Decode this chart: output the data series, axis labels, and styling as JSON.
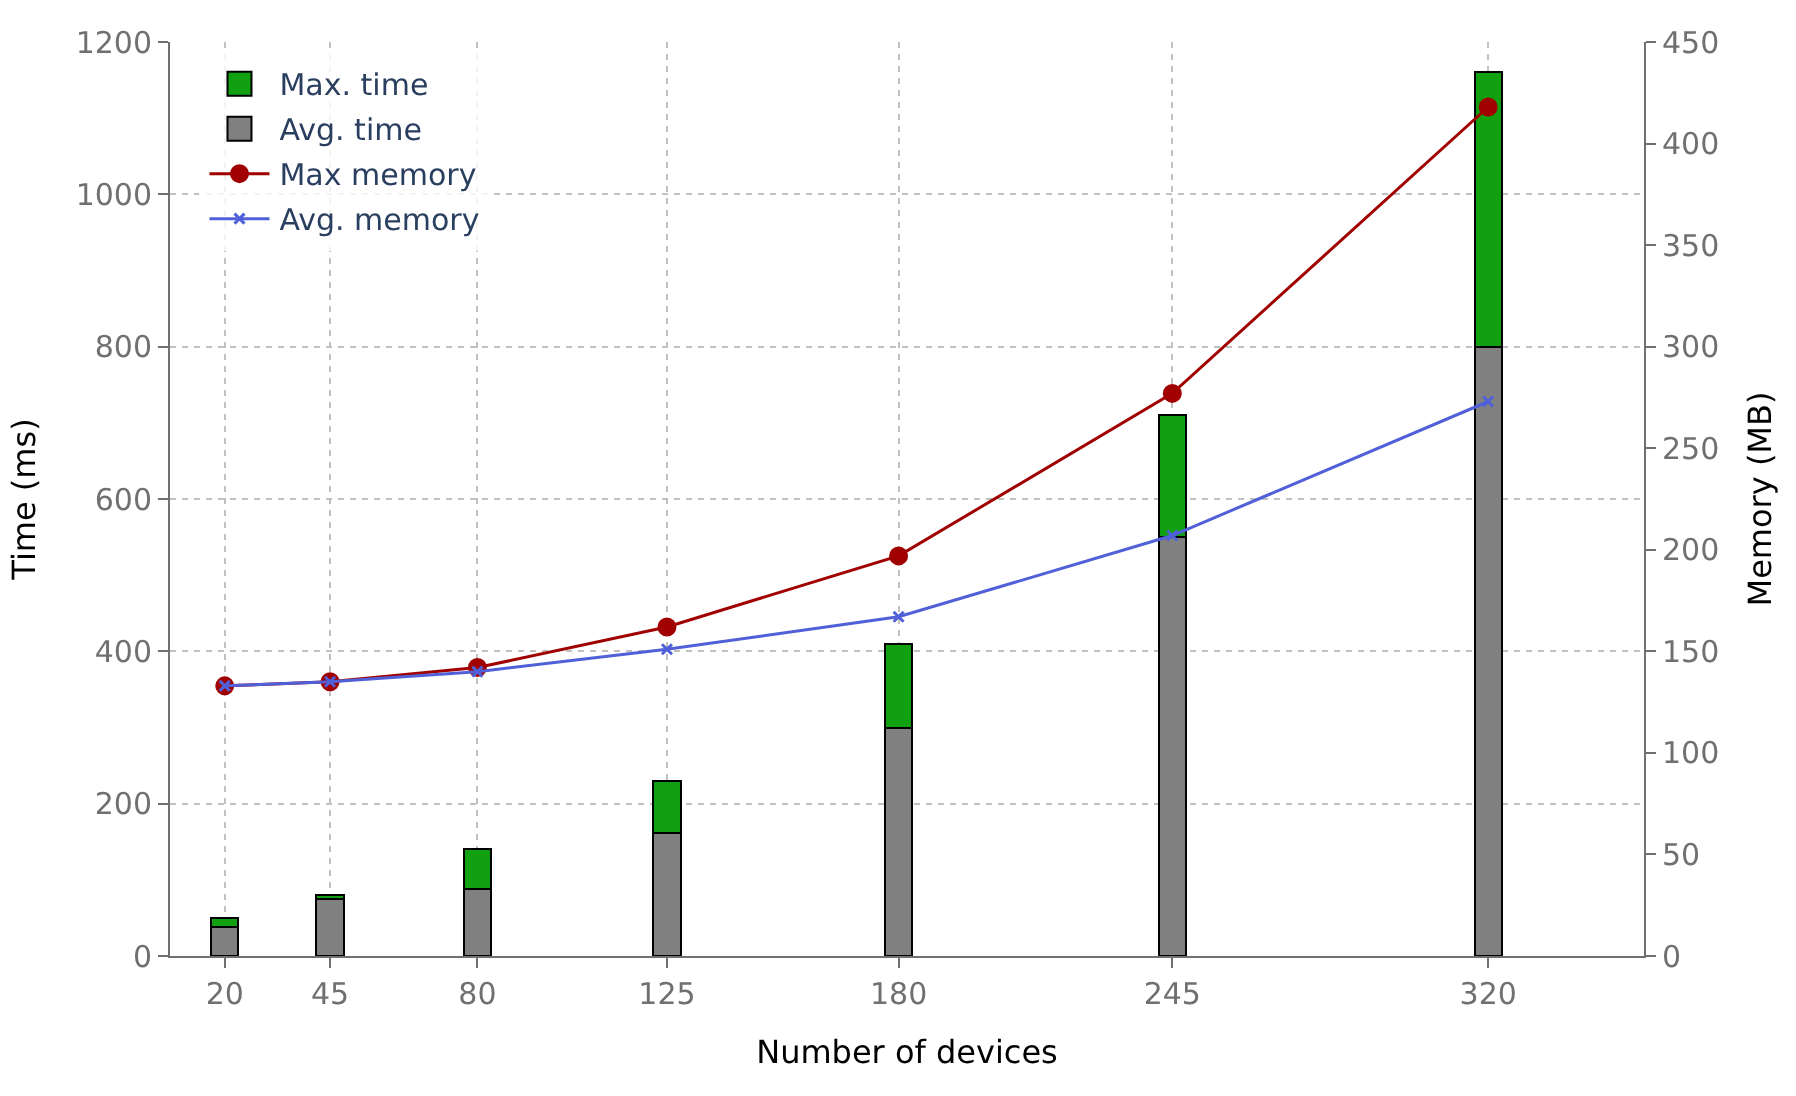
{
  "chart_data": {
    "type": "bar",
    "stacked": true,
    "xlabel": "Number of devices",
    "ylabel": "Time (ms)",
    "y2label": "Memory (MB)",
    "x": [
      20,
      45,
      80,
      125,
      180,
      245,
      320
    ],
    "xlim": [
      7,
      357
    ],
    "xticks": [
      20,
      45,
      80,
      125,
      180,
      245,
      320
    ],
    "ylim": [
      0,
      1200
    ],
    "yticks": [
      0,
      200,
      400,
      600,
      800,
      1000,
      1200
    ],
    "y2lim": [
      0,
      450
    ],
    "y2ticks": [
      0,
      50,
      100,
      150,
      200,
      250,
      300,
      350,
      400,
      450
    ],
    "grid": true,
    "legend": "top left",
    "series": [
      {
        "name": "Avg. time",
        "color": "#808080",
        "values": [
          38,
          75,
          88,
          162,
          300,
          550,
          800
        ]
      },
      {
        "name": "Max. time",
        "color": "#10a010",
        "values": [
          12,
          5,
          52,
          68,
          110,
          160,
          360
        ]
      },
      {
        "name": "Max memory",
        "type": "line",
        "axis": "y2",
        "marker": "circle",
        "color": "#a00000",
        "values": [
          133,
          135,
          142,
          162,
          197,
          277,
          418
        ]
      },
      {
        "name": "Avg. memory",
        "type": "line",
        "axis": "y2",
        "marker": "cross",
        "color": "#5060d8",
        "values": [
          133,
          135,
          140,
          151,
          167,
          207,
          273
        ]
      }
    ]
  }
}
